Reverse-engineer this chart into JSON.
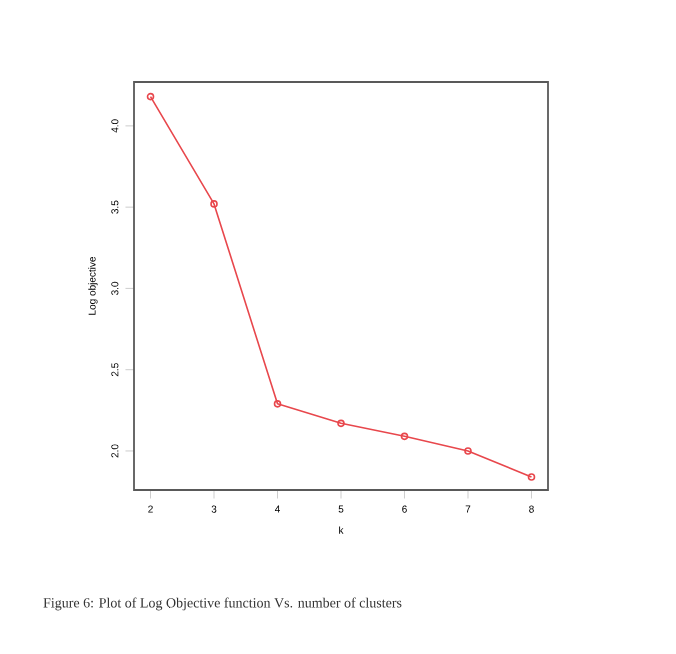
{
  "chart_data": {
    "type": "line",
    "xlabel": "k",
    "ylabel": "Log objective",
    "x": [
      2,
      3,
      4,
      5,
      6,
      7,
      8
    ],
    "series": [
      {
        "color": "#e8474c",
        "values": [
          4.18,
          3.52,
          2.29,
          2.17,
          2.09,
          2.0,
          1.84
        ]
      }
    ],
    "xlim": [
      1.74,
      8.26
    ],
    "ylim": [
      1.76,
      4.27
    ],
    "xticks": [
      2,
      3,
      4,
      5,
      6,
      7,
      8
    ],
    "yticks": [
      {
        "value": 2,
        "label": "2.0"
      },
      {
        "value": 2.5,
        "label": "2.5"
      },
      {
        "value": 3,
        "label": "3.0"
      },
      {
        "value": 3.5,
        "label": "3.5"
      },
      {
        "value": 4,
        "label": "4.0"
      }
    ],
    "marker": "circle",
    "line_style": "solid",
    "grid": false,
    "annotations": [
      "Figure 6: Plot of Log Objective function Vs. number of clusters"
    ]
  }
}
